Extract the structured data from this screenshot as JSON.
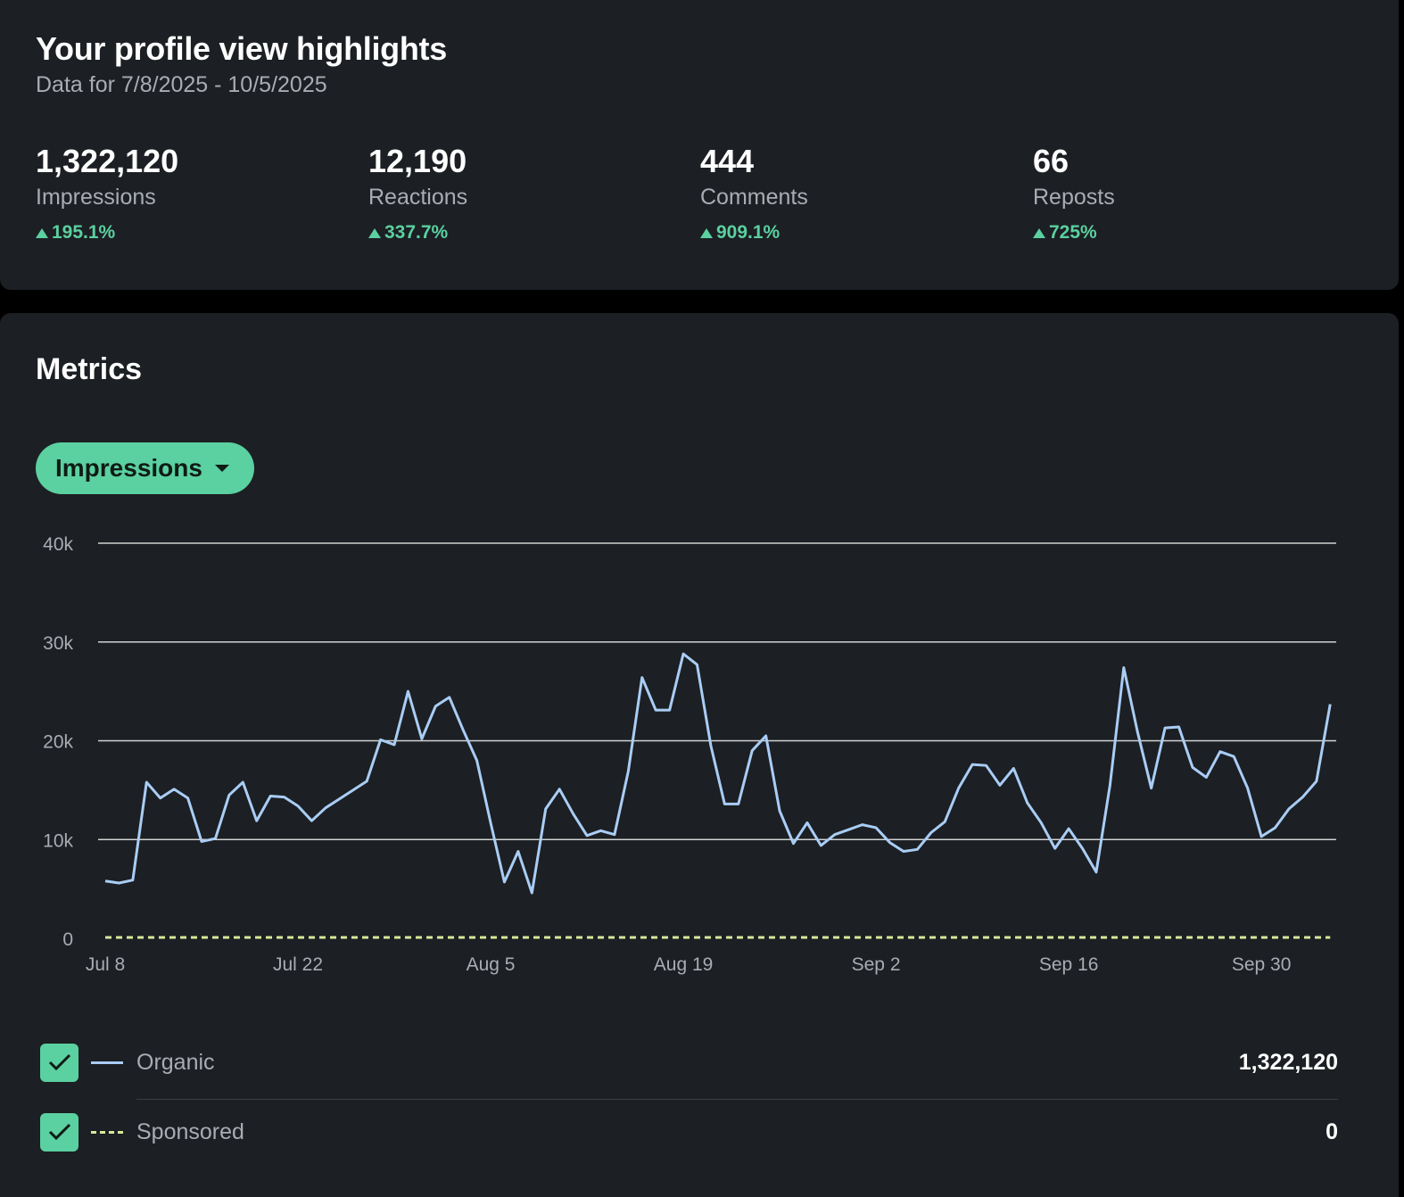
{
  "highlights": {
    "title": "Your profile view highlights",
    "subtitle": "Data for 7/8/2025 - 10/5/2025",
    "stats": [
      {
        "value": "1,322,120",
        "label": "Impressions",
        "change": "195.1%"
      },
      {
        "value": "12,190",
        "label": "Reactions",
        "change": "337.7%"
      },
      {
        "value": "444",
        "label": "Comments",
        "change": "909.1%"
      },
      {
        "value": "66",
        "label": "Reposts",
        "change": "725%"
      }
    ]
  },
  "metrics": {
    "title": "Metrics",
    "dropdown_label": "Impressions",
    "legend": [
      {
        "label": "Organic",
        "value": "1,322,120",
        "checked": true
      },
      {
        "label": "Sponsored",
        "value": "0",
        "checked": true
      }
    ]
  },
  "colors": {
    "accent": "#5bd0a0",
    "organic": "#a9cdf5",
    "sponsored": "#d9e79a",
    "grid": "#e6e6e6"
  },
  "chart_data": {
    "type": "line",
    "ylim": [
      0,
      40000
    ],
    "y_ticks": [
      {
        "value": 0,
        "label": "0"
      },
      {
        "value": 10000,
        "label": "10k"
      },
      {
        "value": 20000,
        "label": "20k"
      },
      {
        "value": 30000,
        "label": "30k"
      },
      {
        "value": 40000,
        "label": "40k"
      }
    ],
    "x_ticks": [
      {
        "value": "2025-07-08",
        "label": "Jul 8"
      },
      {
        "value": "2025-07-22",
        "label": "Jul 22"
      },
      {
        "value": "2025-08-05",
        "label": "Aug 5"
      },
      {
        "value": "2025-08-19",
        "label": "Aug 19"
      },
      {
        "value": "2025-09-02",
        "label": "Sep 2"
      },
      {
        "value": "2025-09-16",
        "label": "Sep 16"
      },
      {
        "value": "2025-09-30",
        "label": "Sep 30"
      }
    ],
    "x": [
      "2025-07-08",
      "2025-07-09",
      "2025-07-10",
      "2025-07-11",
      "2025-07-12",
      "2025-07-13",
      "2025-07-14",
      "2025-07-15",
      "2025-07-16",
      "2025-07-17",
      "2025-07-18",
      "2025-07-19",
      "2025-07-20",
      "2025-07-21",
      "2025-07-22",
      "2025-07-23",
      "2025-07-24",
      "2025-07-25",
      "2025-07-26",
      "2025-07-27",
      "2025-07-28",
      "2025-07-29",
      "2025-07-30",
      "2025-07-31",
      "2025-08-01",
      "2025-08-02",
      "2025-08-03",
      "2025-08-04",
      "2025-08-05",
      "2025-08-06",
      "2025-08-07",
      "2025-08-08",
      "2025-08-09",
      "2025-08-10",
      "2025-08-11",
      "2025-08-12",
      "2025-08-13",
      "2025-08-14",
      "2025-08-15",
      "2025-08-16",
      "2025-08-17",
      "2025-08-18",
      "2025-08-19",
      "2025-08-20",
      "2025-08-21",
      "2025-08-22",
      "2025-08-23",
      "2025-08-24",
      "2025-08-25",
      "2025-08-26",
      "2025-08-27",
      "2025-08-28",
      "2025-08-29",
      "2025-08-30",
      "2025-08-31",
      "2025-09-01",
      "2025-09-02",
      "2025-09-03",
      "2025-09-04",
      "2025-09-05",
      "2025-09-06",
      "2025-09-07",
      "2025-09-08",
      "2025-09-09",
      "2025-09-10",
      "2025-09-11",
      "2025-09-12",
      "2025-09-13",
      "2025-09-14",
      "2025-09-15",
      "2025-09-16",
      "2025-09-17",
      "2025-09-18",
      "2025-09-19",
      "2025-09-20",
      "2025-09-21",
      "2025-09-22",
      "2025-09-23",
      "2025-09-24",
      "2025-09-25",
      "2025-09-26",
      "2025-09-27",
      "2025-09-28",
      "2025-09-29",
      "2025-09-30",
      "2025-10-01",
      "2025-10-02",
      "2025-10-03",
      "2025-10-04",
      "2025-10-05"
    ],
    "series": [
      {
        "name": "Organic",
        "values": [
          5800,
          5600,
          5900,
          15800,
          14200,
          15100,
          14200,
          9800,
          10100,
          14500,
          15800,
          11900,
          14400,
          14300,
          13400,
          11900,
          13200,
          14100,
          15000,
          15900,
          20100,
          19600,
          25000,
          20200,
          23500,
          24400,
          21100,
          18000,
          11700,
          5700,
          8800,
          4600,
          13100,
          15100,
          12600,
          10400,
          10900,
          10500,
          16900,
          26400,
          23100,
          23100,
          28800,
          27700,
          19500,
          13600,
          13600,
          19000,
          20500,
          12900,
          9600,
          11700,
          9400,
          10500,
          11000,
          11500,
          11200,
          9700,
          8800,
          9000,
          10700,
          11800,
          15200,
          17600,
          17500,
          15500,
          17200,
          13700,
          11700,
          9100,
          11100,
          9100,
          6700,
          15500,
          27400,
          20900,
          15200,
          21300,
          21400,
          17300,
          16300,
          18900,
          18400,
          15200,
          10300,
          11200,
          13100,
          14300,
          15900,
          23700
        ]
      },
      {
        "name": "Sponsored",
        "values": [
          0,
          0,
          0,
          0,
          0,
          0,
          0,
          0,
          0,
          0,
          0,
          0,
          0,
          0,
          0,
          0,
          0,
          0,
          0,
          0,
          0,
          0,
          0,
          0,
          0,
          0,
          0,
          0,
          0,
          0,
          0,
          0,
          0,
          0,
          0,
          0,
          0,
          0,
          0,
          0,
          0,
          0,
          0,
          0,
          0,
          0,
          0,
          0,
          0,
          0,
          0,
          0,
          0,
          0,
          0,
          0,
          0,
          0,
          0,
          0,
          0,
          0,
          0,
          0,
          0,
          0,
          0,
          0,
          0,
          0,
          0,
          0,
          0,
          0,
          0,
          0,
          0,
          0,
          0,
          0,
          0,
          0,
          0,
          0,
          0,
          0,
          0,
          0,
          0,
          0
        ]
      }
    ],
    "grid": true,
    "legend": "bottom"
  }
}
